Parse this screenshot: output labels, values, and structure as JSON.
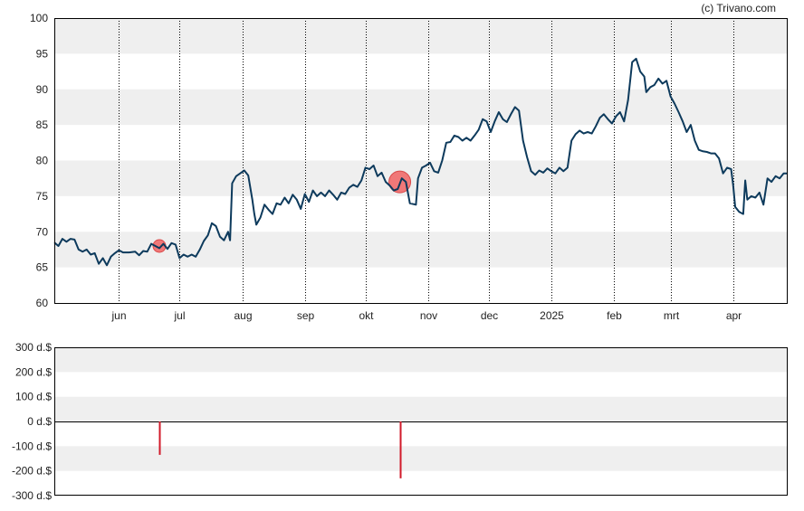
{
  "credit": "(c) Trivano.com",
  "colors": {
    "price_line": "#0d3a5c",
    "band_fill": "#efefef",
    "marker_fill": "#f06a6a",
    "marker_stroke": "#d94a4a",
    "bar": "#d11a2a",
    "frame": "#000000",
    "vgrid": "#000000"
  },
  "chart_data": [
    {
      "type": "line",
      "ylim": [
        60,
        100
      ],
      "y_ticks": [
        "60",
        "65",
        "70",
        "75",
        "80",
        "85",
        "90",
        "95",
        "100"
      ],
      "x_tick_labels": [
        "jun",
        "jul",
        "aug",
        "sep",
        "okt",
        "nov",
        "dec",
        "2025",
        "feb",
        "mrt",
        "apr"
      ],
      "x_tick_dates": [
        "2024-06-01",
        "2024-07-01",
        "2024-08-01",
        "2024-09-01",
        "2024-10-01",
        "2024-11-01",
        "2024-12-01",
        "2025-01-01",
        "2025-02-01",
        "2025-03-01",
        "2025-04-01"
      ],
      "x_range": [
        "2024-04-30",
        "2025-04-28"
      ],
      "grid_vertical": "dotted",
      "y_bands": "alternating",
      "series": [
        {
          "points": [
            [
              "2024-04-30",
              68.5
            ],
            [
              "2024-05-02",
              68.0
            ],
            [
              "2024-05-04",
              69.0
            ],
            [
              "2024-05-06",
              68.6
            ],
            [
              "2024-05-08",
              69.0
            ],
            [
              "2024-05-10",
              68.9
            ],
            [
              "2024-05-12",
              67.5
            ],
            [
              "2024-05-14",
              67.2
            ],
            [
              "2024-05-16",
              67.5
            ],
            [
              "2024-05-18",
              66.8
            ],
            [
              "2024-05-20",
              67.0
            ],
            [
              "2024-05-22",
              65.5
            ],
            [
              "2024-05-24",
              66.3
            ],
            [
              "2024-05-26",
              65.3
            ],
            [
              "2024-05-28",
              66.5
            ],
            [
              "2024-05-30",
              67.0
            ],
            [
              "2024-06-01",
              67.4
            ],
            [
              "2024-06-03",
              67.1
            ],
            [
              "2024-06-06",
              67.1
            ],
            [
              "2024-06-09",
              67.2
            ],
            [
              "2024-06-11",
              66.7
            ],
            [
              "2024-06-13",
              67.3
            ],
            [
              "2024-06-15",
              67.2
            ],
            [
              "2024-06-17",
              68.3
            ],
            [
              "2024-06-19",
              68.0
            ],
            [
              "2024-06-21",
              67.7
            ],
            [
              "2024-06-23",
              68.3
            ],
            [
              "2024-06-25",
              67.6
            ],
            [
              "2024-06-27",
              68.4
            ],
            [
              "2024-06-29",
              68.2
            ],
            [
              "2024-07-01",
              66.3
            ],
            [
              "2024-07-03",
              66.8
            ],
            [
              "2024-07-05",
              66.5
            ],
            [
              "2024-07-07",
              66.8
            ],
            [
              "2024-07-09",
              66.5
            ],
            [
              "2024-07-11",
              67.5
            ],
            [
              "2024-07-13",
              68.7
            ],
            [
              "2024-07-15",
              69.5
            ],
            [
              "2024-07-17",
              71.2
            ],
            [
              "2024-07-19",
              70.8
            ],
            [
              "2024-07-21",
              69.3
            ],
            [
              "2024-07-23",
              68.8
            ],
            [
              "2024-07-25",
              70.0
            ],
            [
              "2024-07-26",
              68.8
            ],
            [
              "2024-07-27",
              76.8
            ],
            [
              "2024-07-29",
              77.8
            ],
            [
              "2024-07-31",
              78.2
            ],
            [
              "2024-08-02",
              78.6
            ],
            [
              "2024-08-04",
              77.9
            ],
            [
              "2024-08-06",
              74.5
            ],
            [
              "2024-08-07",
              72.5
            ],
            [
              "2024-08-08",
              71.0
            ],
            [
              "2024-08-10",
              72.0
            ],
            [
              "2024-08-12",
              73.8
            ],
            [
              "2024-08-14",
              73.1
            ],
            [
              "2024-08-16",
              72.5
            ],
            [
              "2024-08-18",
              74.0
            ],
            [
              "2024-08-20",
              73.8
            ],
            [
              "2024-08-22",
              74.8
            ],
            [
              "2024-08-24",
              74.0
            ],
            [
              "2024-08-26",
              75.2
            ],
            [
              "2024-08-28",
              74.5
            ],
            [
              "2024-08-30",
              73.2
            ],
            [
              "2024-09-01",
              75.3
            ],
            [
              "2024-09-03",
              74.2
            ],
            [
              "2024-09-05",
              75.8
            ],
            [
              "2024-09-07",
              75.0
            ],
            [
              "2024-09-09",
              75.5
            ],
            [
              "2024-09-11",
              75.0
            ],
            [
              "2024-09-13",
              75.8
            ],
            [
              "2024-09-15",
              75.2
            ],
            [
              "2024-09-17",
              74.5
            ],
            [
              "2024-09-19",
              75.5
            ],
            [
              "2024-09-21",
              75.3
            ],
            [
              "2024-09-23",
              76.2
            ],
            [
              "2024-09-25",
              76.6
            ],
            [
              "2024-09-27",
              76.3
            ],
            [
              "2024-09-29",
              77.2
            ],
            [
              "2024-10-01",
              79.0
            ],
            [
              "2024-10-03",
              78.8
            ],
            [
              "2024-10-05",
              79.3
            ],
            [
              "2024-10-07",
              77.8
            ],
            [
              "2024-10-09",
              78.3
            ],
            [
              "2024-10-11",
              77.0
            ],
            [
              "2024-10-13",
              76.5
            ],
            [
              "2024-10-15",
              75.8
            ],
            [
              "2024-10-17",
              76.0
            ],
            [
              "2024-10-19",
              77.5
            ],
            [
              "2024-10-21",
              77.0
            ],
            [
              "2024-10-23",
              74.0
            ],
            [
              "2024-10-26",
              73.8
            ],
            [
              "2024-10-27",
              77.5
            ],
            [
              "2024-10-29",
              79.0
            ],
            [
              "2024-10-31",
              79.3
            ],
            [
              "2024-11-02",
              79.7
            ],
            [
              "2024-11-04",
              78.5
            ],
            [
              "2024-11-06",
              78.3
            ],
            [
              "2024-11-08",
              80.0
            ],
            [
              "2024-11-10",
              82.5
            ],
            [
              "2024-11-12",
              82.6
            ],
            [
              "2024-11-14",
              83.5
            ],
            [
              "2024-11-16",
              83.3
            ],
            [
              "2024-11-18",
              82.8
            ],
            [
              "2024-11-20",
              83.2
            ],
            [
              "2024-11-22",
              82.8
            ],
            [
              "2024-11-24",
              83.5
            ],
            [
              "2024-11-26",
              84.3
            ],
            [
              "2024-11-28",
              85.8
            ],
            [
              "2024-11-30",
              85.5
            ],
            [
              "2024-12-02",
              84.0
            ],
            [
              "2024-12-04",
              85.5
            ],
            [
              "2024-12-06",
              86.8
            ],
            [
              "2024-12-08",
              85.8
            ],
            [
              "2024-12-10",
              85.4
            ],
            [
              "2024-12-12",
              86.5
            ],
            [
              "2024-12-14",
              87.5
            ],
            [
              "2024-12-16",
              87.0
            ],
            [
              "2024-12-18",
              82.8
            ],
            [
              "2024-12-20",
              80.5
            ],
            [
              "2024-12-22",
              78.5
            ],
            [
              "2024-12-24",
              78.0
            ],
            [
              "2024-12-26",
              78.6
            ],
            [
              "2024-12-28",
              78.3
            ],
            [
              "2024-12-30",
              78.9
            ],
            [
              "2025-01-01",
              78.5
            ],
            [
              "2025-01-03",
              78.2
            ],
            [
              "2025-01-05",
              79.0
            ],
            [
              "2025-01-07",
              78.5
            ],
            [
              "2025-01-09",
              79.0
            ],
            [
              "2025-01-11",
              82.8
            ],
            [
              "2025-01-13",
              83.7
            ],
            [
              "2025-01-15",
              84.2
            ],
            [
              "2025-01-17",
              83.8
            ],
            [
              "2025-01-19",
              84.0
            ],
            [
              "2025-01-21",
              83.8
            ],
            [
              "2025-01-23",
              84.8
            ],
            [
              "2025-01-25",
              86.0
            ],
            [
              "2025-01-27",
              86.5
            ],
            [
              "2025-01-29",
              85.8
            ],
            [
              "2025-01-31",
              85.2
            ],
            [
              "2025-02-02",
              86.2
            ],
            [
              "2025-02-04",
              86.8
            ],
            [
              "2025-02-06",
              85.5
            ],
            [
              "2025-02-08",
              88.5
            ],
            [
              "2025-02-10",
              93.8
            ],
            [
              "2025-02-12",
              94.3
            ],
            [
              "2025-02-14",
              92.5
            ],
            [
              "2025-02-16",
              91.8
            ],
            [
              "2025-02-17",
              89.6
            ],
            [
              "2025-02-19",
              90.3
            ],
            [
              "2025-02-21",
              90.6
            ],
            [
              "2025-02-23",
              91.5
            ],
            [
              "2025-02-25",
              90.8
            ],
            [
              "2025-02-27",
              91.2
            ],
            [
              "2025-03-01",
              89.0
            ],
            [
              "2025-03-03",
              88.0
            ],
            [
              "2025-03-05",
              86.8
            ],
            [
              "2025-03-07",
              85.5
            ],
            [
              "2025-03-09",
              84.0
            ],
            [
              "2025-03-11",
              85.0
            ],
            [
              "2025-03-13",
              82.8
            ],
            [
              "2025-03-15",
              81.5
            ],
            [
              "2025-03-17",
              81.3
            ],
            [
              "2025-03-19",
              81.2
            ],
            [
              "2025-03-21",
              81.0
            ],
            [
              "2025-03-23",
              81.0
            ],
            [
              "2025-03-25",
              80.3
            ],
            [
              "2025-03-27",
              78.2
            ],
            [
              "2025-03-29",
              79.0
            ],
            [
              "2025-03-31",
              78.8
            ],
            [
              "2025-04-01",
              76.5
            ],
            [
              "2025-04-02",
              73.5
            ],
            [
              "2025-04-04",
              72.8
            ],
            [
              "2025-04-06",
              72.5
            ],
            [
              "2025-04-07",
              77.2
            ],
            [
              "2025-04-08",
              74.5
            ],
            [
              "2025-04-10",
              75.0
            ],
            [
              "2025-04-12",
              74.8
            ],
            [
              "2025-04-14",
              75.5
            ],
            [
              "2025-04-16",
              73.8
            ],
            [
              "2025-04-18",
              77.5
            ],
            [
              "2025-04-20",
              77.0
            ],
            [
              "2025-04-22",
              77.8
            ],
            [
              "2025-04-24",
              77.5
            ],
            [
              "2025-04-26",
              78.2
            ],
            [
              "2025-04-28",
              78.2
            ]
          ]
        }
      ],
      "markers": [
        {
          "date": "2024-06-21",
          "value": 68.0,
          "size": "small"
        },
        {
          "date": "2024-10-18",
          "value": 77.0,
          "size": "large"
        }
      ]
    },
    {
      "type": "bar",
      "ylim": [
        -300,
        300
      ],
      "y_ticks": [
        "300 d.$",
        "200 d.$",
        "100 d.$",
        "0 d.$",
        "-100 d.$",
        "-200 d.$",
        "-300 d.$"
      ],
      "bars": [
        {
          "date": "2024-06-21",
          "value": -135
        },
        {
          "date": "2024-10-18",
          "value": -230
        }
      ]
    }
  ]
}
